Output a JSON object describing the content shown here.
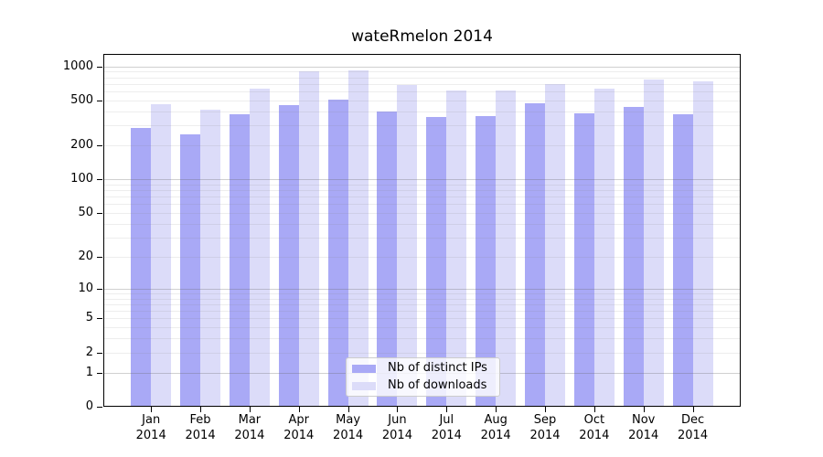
{
  "title": "wateRmelon 2014",
  "colors": {
    "bar_ips": "#a9a9f6",
    "bar_downloads": "#dcdcf9",
    "grid_major": "rgba(100,100,100,0.30)",
    "grid_minor": "rgba(128,128,128,0.14)",
    "axis": "#000000",
    "background": "#ffffff",
    "legend_border": "#cccccc",
    "legend_background": "rgba(255,255,255,0.8)"
  },
  "legend": {
    "items": [
      {
        "label": "Nb of distinct IPs",
        "series": "ips"
      },
      {
        "label": "Nb of downloads",
        "series": "downloads"
      }
    ]
  },
  "chart_data": {
    "type": "bar",
    "title": "wateRmelon 2014",
    "categories": [
      "Jan 2014",
      "Feb 2014",
      "Mar 2014",
      "Apr 2014",
      "May 2014",
      "Jun 2014",
      "Jul 2014",
      "Aug 2014",
      "Sep 2014",
      "Oct 2014",
      "Nov 2014",
      "Dec 2014"
    ],
    "series": [
      {
        "name": "Nb of distinct IPs",
        "color": "#a9a9f6",
        "values": [
          285,
          250,
          375,
          455,
          505,
          395,
          355,
          365,
          470,
          385,
          435,
          380
        ]
      },
      {
        "name": "Nb of downloads",
        "color": "#dcdcf9",
        "values": [
          465,
          415,
          640,
          900,
          915,
          680,
          610,
          610,
          690,
          635,
          770,
          730
        ]
      }
    ],
    "xlabel": "",
    "ylabel": "",
    "yscale": "log10(1+x)",
    "ylim": [
      0,
      1285
    ],
    "y_axis": {
      "tick_labels": [
        0,
        1,
        2,
        5,
        10,
        20,
        50,
        100,
        200,
        500,
        1000
      ],
      "major_gridlines": [
        1,
        10,
        100,
        1000
      ],
      "minor_gridlines": [
        2,
        3,
        4,
        5,
        6,
        7,
        8,
        9,
        20,
        30,
        40,
        50,
        60,
        70,
        80,
        90,
        200,
        300,
        400,
        500,
        600,
        700,
        800,
        900
      ]
    },
    "grid": true,
    "legend_position": "lower center"
  }
}
